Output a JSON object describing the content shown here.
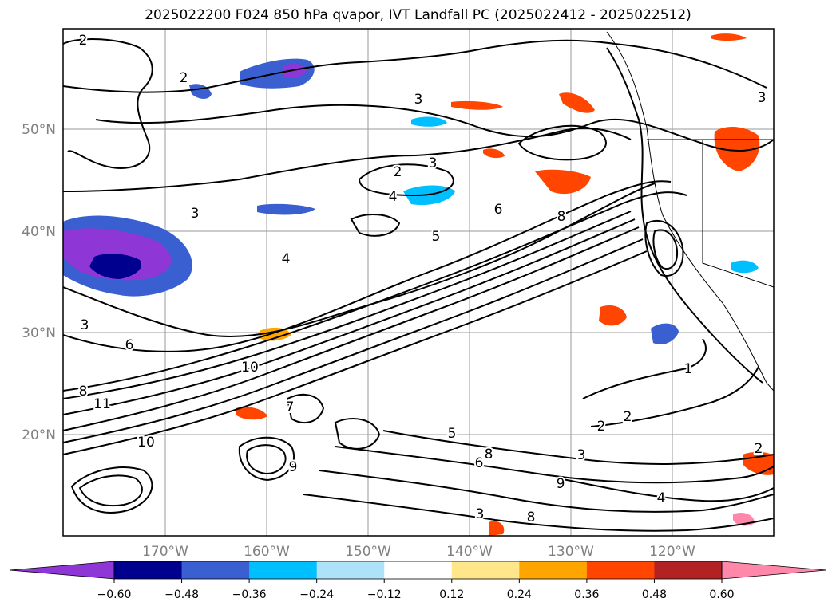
{
  "title": "2025022200 F024 850 hPa qvapor, IVT Landfall PC (2025022412 - 2025022512)",
  "map": {
    "lat_ticks": [
      "50°N",
      "40°N",
      "30°N",
      "20°N"
    ],
    "lon_ticks": [
      "170°W",
      "160°W",
      "150°W",
      "140°W",
      "130°W",
      "120°W"
    ],
    "grid": true
  },
  "contour_labels": [
    "2",
    "2",
    "3",
    "3",
    "2",
    "3",
    "4",
    "6",
    "8",
    "5",
    "4",
    "3",
    "6",
    "10",
    "8",
    "11",
    "5",
    "7",
    "9",
    "2",
    "2",
    "1",
    "3",
    "9",
    "10",
    "6",
    "8",
    "4",
    "8",
    "3",
    "2",
    "3"
  ],
  "colorbar": {
    "colors": [
      "#8f36d6",
      "#00008f",
      "#3a5fd0",
      "#00bfff",
      "#aee2f8",
      "#ffffff",
      "#ffe68a",
      "#ffa500",
      "#ff4500",
      "#b22222",
      "#ff88aa"
    ],
    "tick_labels": [
      "−0.60",
      "−0.48",
      "−0.36",
      "−0.24",
      "−0.12",
      "0.12",
      "0.24",
      "0.36",
      "0.48",
      "0.60"
    ]
  }
}
